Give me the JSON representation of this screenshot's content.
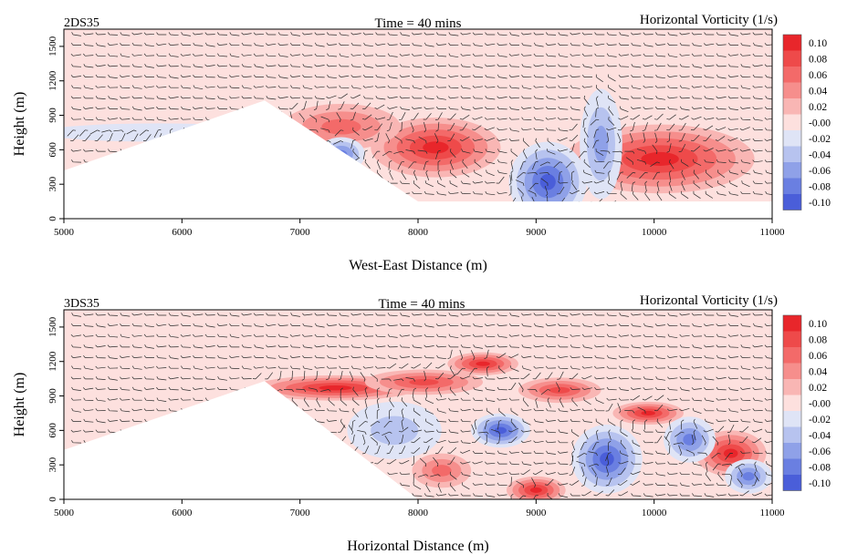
{
  "chart_data": [
    {
      "type": "heatmap",
      "case_label": "2DS35",
      "title": "Time = 40 mins",
      "colorbar_title": "Horizontal Vorticity (1/s)",
      "xlabel": "West-East Distance (m)",
      "ylabel": "Height (m)",
      "xlim": [
        5000,
        11000
      ],
      "ylim": [
        0,
        1650
      ],
      "xticks": [
        "5000",
        "6000",
        "7000",
        "8000",
        "9000",
        "10000",
        "11000"
      ],
      "yticks": [
        "0",
        "300",
        "600",
        "900",
        "1200",
        "1500"
      ],
      "colorbar_levels": [
        "0.10",
        "0.08",
        "0.06",
        "0.04",
        "0.02",
        "-0.00",
        "-0.02",
        "-0.04",
        "-0.06",
        "-0.08",
        "-0.10"
      ],
      "terrain": [
        [
          5000,
          420
        ],
        [
          6700,
          1030
        ],
        [
          8000,
          150
        ],
        [
          11000,
          150
        ]
      ],
      "features": [
        {
          "x": 8150,
          "y": 620,
          "value": 0.1,
          "sx": 550,
          "sy": 260
        },
        {
          "x": 10050,
          "y": 520,
          "value": 0.1,
          "sx": 800,
          "sy": 300
        },
        {
          "x": 7350,
          "y": 800,
          "value": 0.06,
          "sx": 500,
          "sy": 200
        },
        {
          "x": 9100,
          "y": 320,
          "value": -0.1,
          "sx": 330,
          "sy": 350
        },
        {
          "x": 7350,
          "y": 560,
          "value": -0.08,
          "sx": 200,
          "sy": 150
        },
        {
          "x": 9550,
          "y": 650,
          "value": -0.05,
          "sx": 180,
          "sy": 480
        },
        {
          "x": 5800,
          "y": 750,
          "value": -0.02,
          "sx": 1000,
          "sy": 80
        }
      ]
    },
    {
      "type": "heatmap",
      "case_label": "3DS35",
      "title": "Time = 40 mins",
      "colorbar_title": "Horizontal Vorticity (1/s)",
      "xlabel": "Horizontal Distance (m)",
      "ylabel": "Height (m)",
      "xlim": [
        5000,
        11000
      ],
      "ylim": [
        0,
        1650
      ],
      "xticks": [
        "5000",
        "6000",
        "7000",
        "8000",
        "9000",
        "10000",
        "11000"
      ],
      "yticks": [
        "0",
        "300",
        "600",
        "900",
        "1200",
        "1500"
      ],
      "colorbar_levels": [
        "0.10",
        "0.08",
        "0.06",
        "0.04",
        "0.02",
        "-0.00",
        "-0.02",
        "-0.04",
        "-0.06",
        "-0.08",
        "-0.10"
      ],
      "terrain": [
        [
          5000,
          430
        ],
        [
          6700,
          1030
        ],
        [
          8000,
          0
        ],
        [
          11000,
          0
        ]
      ],
      "features": [
        {
          "x": 7300,
          "y": 970,
          "value": 0.1,
          "sx": 700,
          "sy": 110
        },
        {
          "x": 8050,
          "y": 1020,
          "value": 0.08,
          "sx": 500,
          "sy": 110
        },
        {
          "x": 8550,
          "y": 1180,
          "value": 0.1,
          "sx": 300,
          "sy": 100
        },
        {
          "x": 9200,
          "y": 950,
          "value": 0.08,
          "sx": 350,
          "sy": 110
        },
        {
          "x": 9950,
          "y": 750,
          "value": 0.1,
          "sx": 300,
          "sy": 100
        },
        {
          "x": 10650,
          "y": 400,
          "value": 0.1,
          "sx": 300,
          "sy": 200
        },
        {
          "x": 9000,
          "y": 80,
          "value": 0.1,
          "sx": 250,
          "sy": 120
        },
        {
          "x": 8200,
          "y": 250,
          "value": 0.06,
          "sx": 250,
          "sy": 150
        },
        {
          "x": 8700,
          "y": 600,
          "value": -0.1,
          "sx": 250,
          "sy": 150
        },
        {
          "x": 9600,
          "y": 350,
          "value": -0.1,
          "sx": 300,
          "sy": 300
        },
        {
          "x": 10300,
          "y": 520,
          "value": -0.08,
          "sx": 220,
          "sy": 200
        },
        {
          "x": 10800,
          "y": 200,
          "value": -0.08,
          "sx": 200,
          "sy": 150
        },
        {
          "x": 7800,
          "y": 600,
          "value": -0.04,
          "sx": 400,
          "sy": 250
        }
      ]
    }
  ],
  "colorbar_colors": [
    "#e8262b",
    "#ee4a4a",
    "#f36a69",
    "#f68e8c",
    "#f9b6b4",
    "#fde0de",
    "#dfe4f6",
    "#b7c3ef",
    "#8fa1e8",
    "#6a7fe1",
    "#4a5ed9"
  ]
}
